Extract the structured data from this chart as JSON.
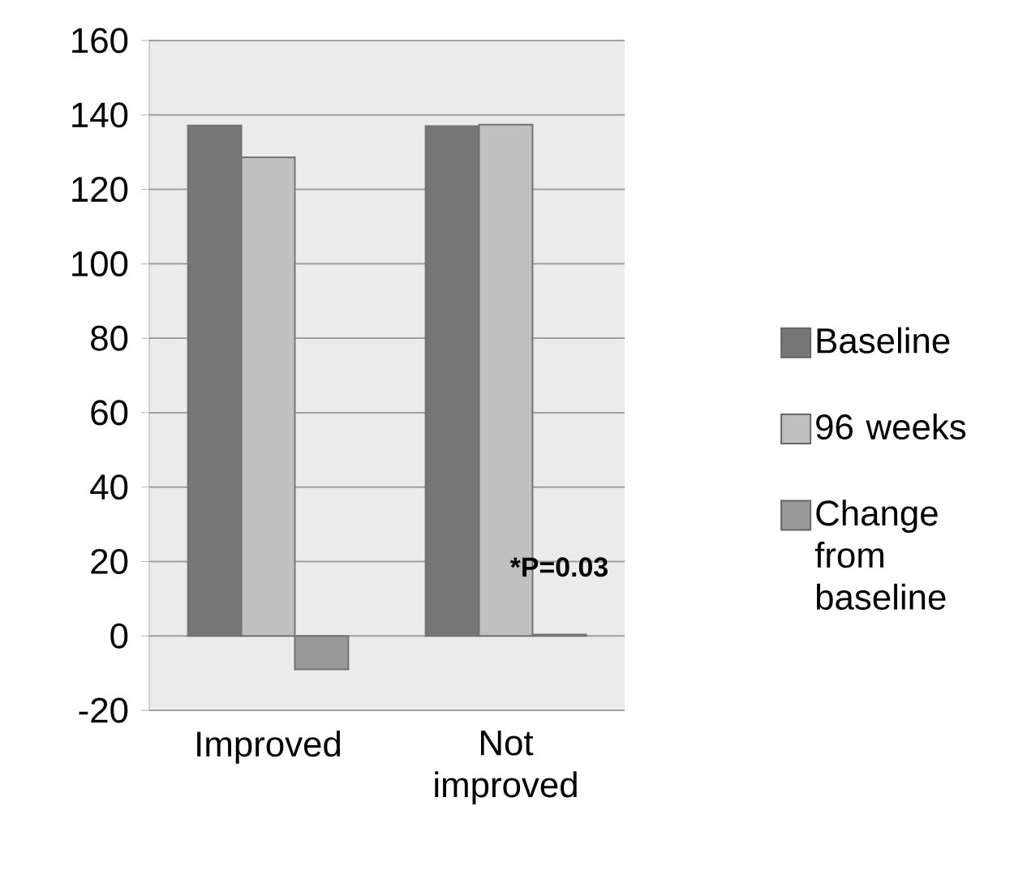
{
  "chart_data": {
    "type": "bar",
    "categories": [
      "Improved",
      "Not improved"
    ],
    "series": [
      {
        "name": "Baseline",
        "color": "#767676",
        "values": [
          137.2,
          137.0
        ]
      },
      {
        "name": "96 weeks",
        "color": "#c0c0c0",
        "values": [
          128.6,
          137.4
        ]
      },
      {
        "name": "Change from baseline",
        "color": "#999999",
        "values": [
          -9.0,
          0.4
        ]
      }
    ],
    "annotations": [
      {
        "text": "*P=0.03",
        "x": "Not improved",
        "y": 0.4
      }
    ],
    "ylim": [
      -20,
      160
    ],
    "yticks": [
      -20,
      0,
      20,
      40,
      60,
      80,
      100,
      120,
      140,
      160
    ],
    "grid": "y",
    "legend": "right"
  }
}
